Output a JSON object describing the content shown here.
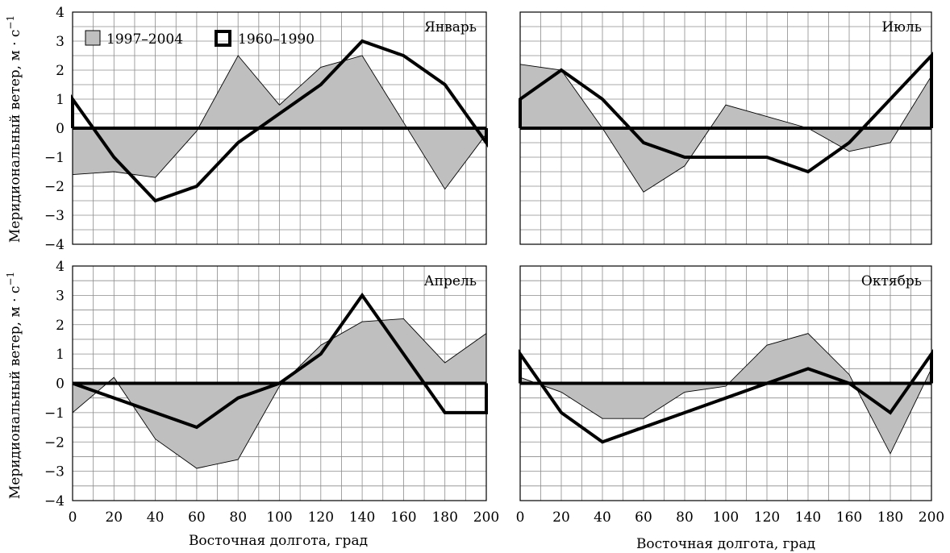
{
  "legend": {
    "modern_label": "1997–2004",
    "historical_label": "1960–1990"
  },
  "axes": {
    "ylabel": "Меридиональный ветер, м · с",
    "ylabel_exponent": "−1",
    "xlabel": "Восточная долгота, град",
    "x_ticks": [
      "0",
      "20",
      "40",
      "60",
      "80",
      "100",
      "120",
      "140",
      "160",
      "180",
      "200"
    ],
    "y_ticks": [
      "4",
      "3",
      "2",
      "1",
      "0",
      "−1",
      "−2",
      "−3",
      "−4"
    ]
  },
  "colors": {
    "fill": "#bfbfbf",
    "line": "#000000",
    "grid": "#8c8c8c"
  },
  "chart_data": [
    {
      "type": "area",
      "title": "Январь",
      "xlim": [
        0,
        200
      ],
      "ylim": [
        -4,
        4
      ],
      "grid": true,
      "legend_position": "top-left",
      "x": [
        0,
        20,
        40,
        60,
        80,
        100,
        120,
        140,
        160,
        180,
        200
      ],
      "series": [
        {
          "name": "1997–2004",
          "style": "filled",
          "values": [
            -1.6,
            -1.5,
            -1.7,
            -0.1,
            2.5,
            0.8,
            2.1,
            2.5,
            0.2,
            -2.1,
            -0.2
          ]
        },
        {
          "name": "1960–1990",
          "style": "thick-line",
          "values": [
            1.0,
            -1.0,
            -2.5,
            -2.0,
            -0.5,
            0.5,
            1.5,
            3.0,
            2.5,
            1.5,
            -0.5
          ]
        }
      ]
    },
    {
      "type": "area",
      "title": "Июль",
      "xlim": [
        0,
        200
      ],
      "ylim": [
        -4,
        4
      ],
      "grid": true,
      "x": [
        0,
        20,
        40,
        60,
        80,
        100,
        120,
        140,
        160,
        180,
        200
      ],
      "series": [
        {
          "name": "1997–2004",
          "style": "filled",
          "values": [
            2.2,
            2.0,
            0.0,
            -2.2,
            -1.3,
            0.8,
            0.4,
            0.0,
            -0.8,
            -0.5,
            1.8
          ]
        },
        {
          "name": "1960–1990",
          "style": "thick-line",
          "values": [
            1.0,
            2.0,
            1.0,
            -0.5,
            -1.0,
            -1.0,
            -1.0,
            -1.5,
            -0.5,
            1.0,
            2.5
          ]
        }
      ]
    },
    {
      "type": "area",
      "title": "Апрель",
      "xlim": [
        0,
        200
      ],
      "ylim": [
        -4,
        4
      ],
      "grid": true,
      "x": [
        0,
        20,
        40,
        60,
        80,
        100,
        120,
        140,
        160,
        180,
        200
      ],
      "series": [
        {
          "name": "1997–2004",
          "style": "filled",
          "values": [
            -1.0,
            0.2,
            -1.9,
            -2.9,
            -2.6,
            -0.1,
            1.3,
            2.1,
            2.2,
            0.7,
            1.7
          ]
        },
        {
          "name": "1960–1990",
          "style": "thick-line",
          "values": [
            0.0,
            -0.5,
            -1.0,
            -1.5,
            -0.5,
            0.0,
            1.0,
            3.0,
            1.0,
            -1.0,
            -1.0
          ]
        }
      ]
    },
    {
      "type": "area",
      "title": "Октябрь",
      "xlim": [
        0,
        200
      ],
      "ylim": [
        -4,
        4
      ],
      "grid": true,
      "x": [
        0,
        20,
        40,
        60,
        80,
        100,
        120,
        140,
        160,
        180,
        200
      ],
      "series": [
        {
          "name": "1997–2004",
          "style": "filled",
          "values": [
            0.2,
            -0.3,
            -1.2,
            -1.2,
            -0.3,
            -0.1,
            1.3,
            1.7,
            0.3,
            -2.4,
            0.5
          ]
        },
        {
          "name": "1960–1990",
          "style": "thick-line",
          "values": [
            1.0,
            -1.0,
            -2.0,
            -1.5,
            -1.0,
            -0.5,
            0.0,
            0.5,
            0.0,
            -1.0,
            1.0
          ]
        }
      ]
    }
  ]
}
